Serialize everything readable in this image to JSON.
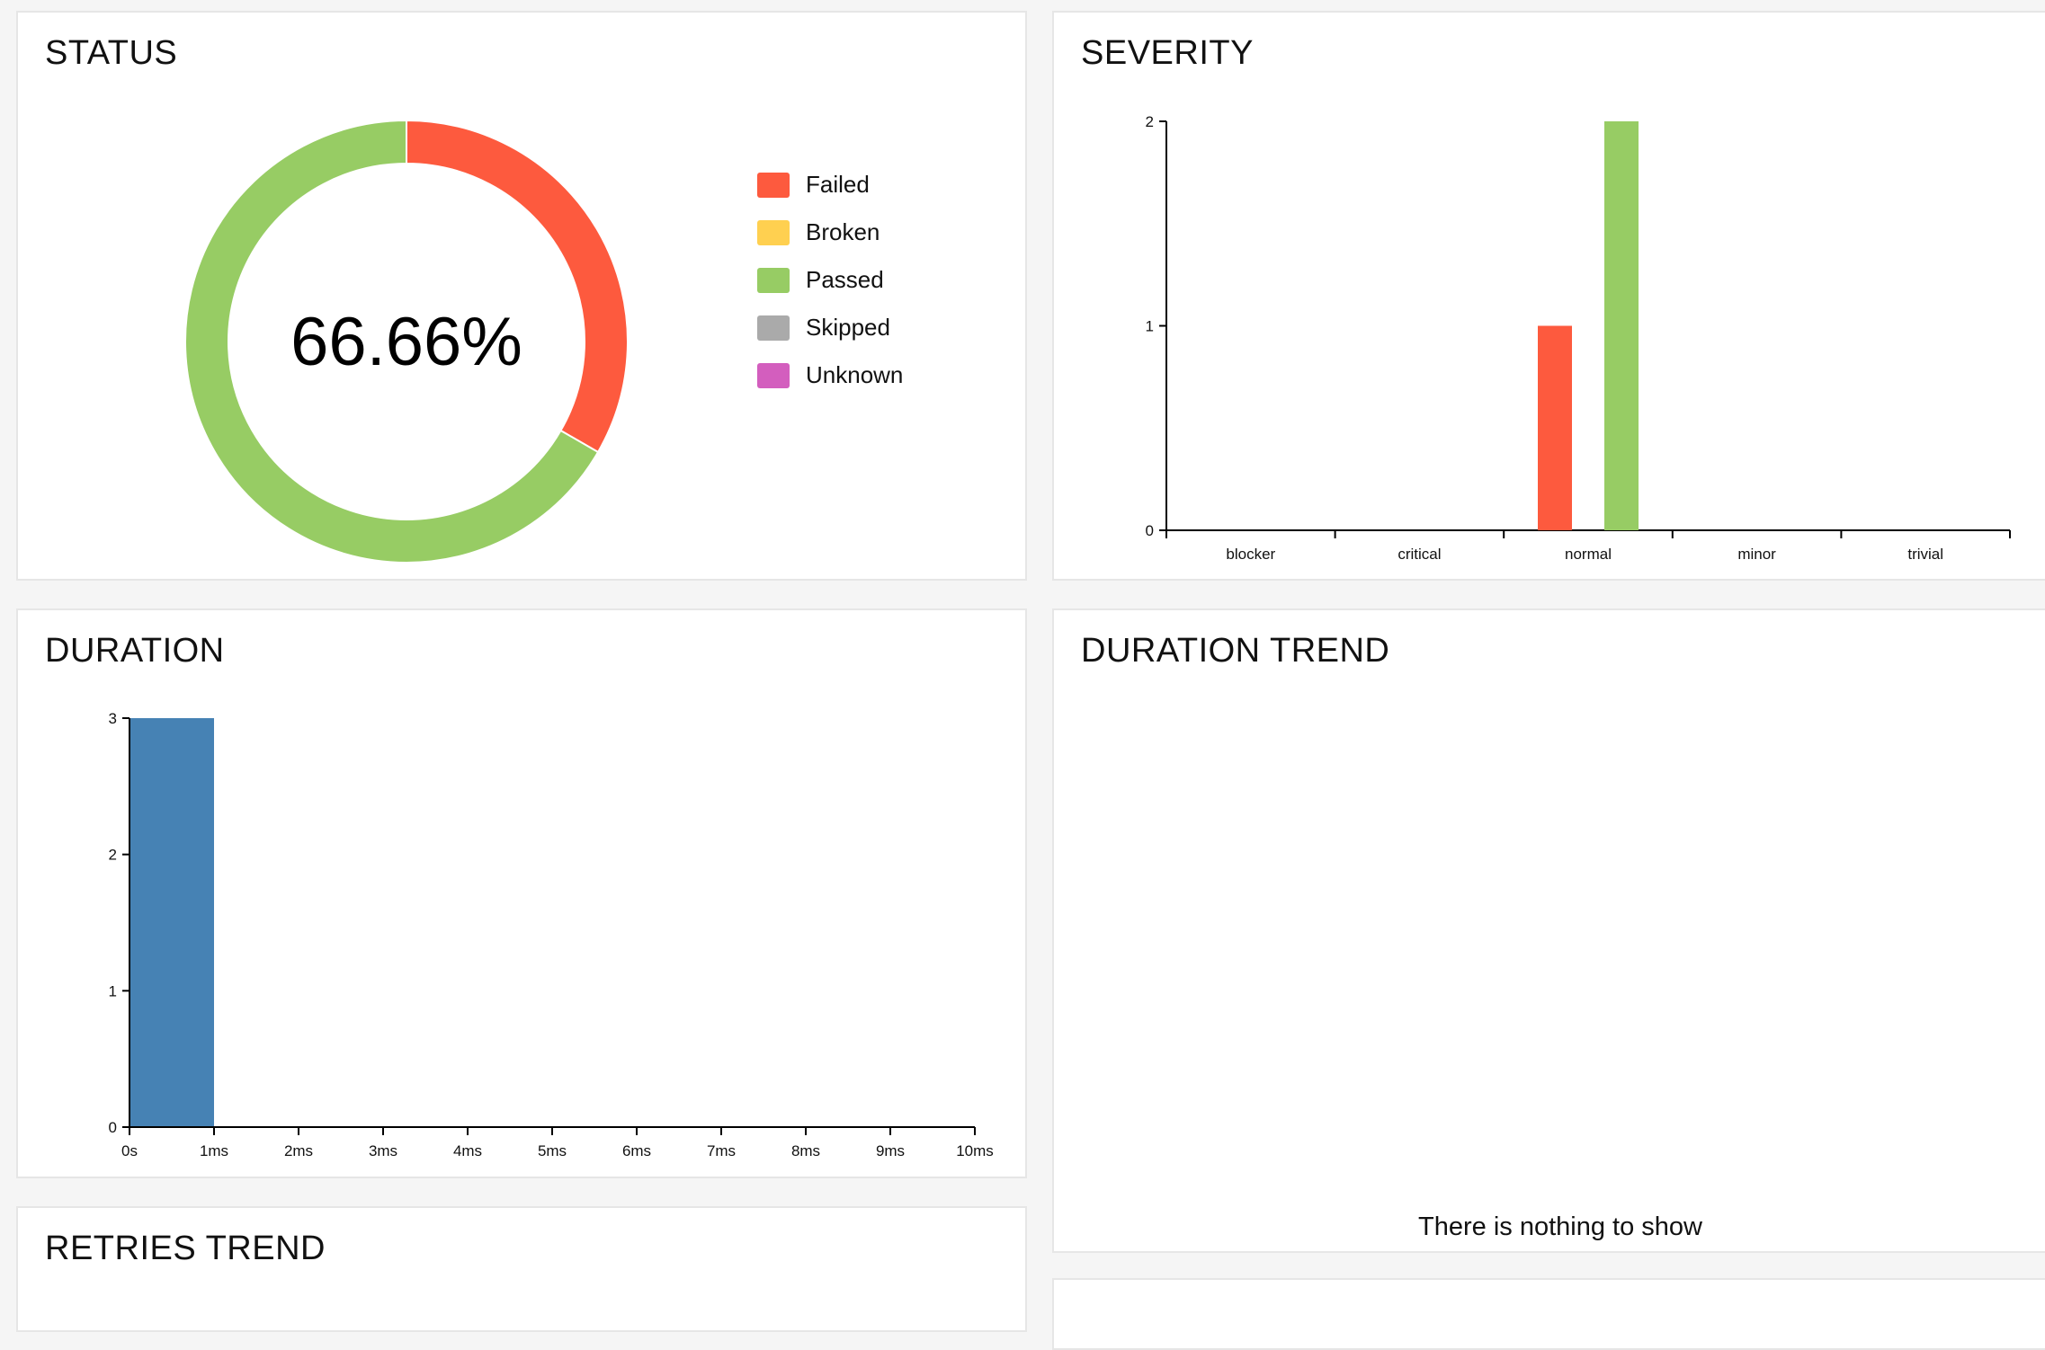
{
  "widgets": {
    "status": {
      "title": "STATUS"
    },
    "severity": {
      "title": "SEVERITY"
    },
    "duration": {
      "title": "DURATION"
    },
    "duration_trend": {
      "title": "DURATION TREND",
      "empty_text": "There is nothing to show"
    },
    "retries_trend": {
      "title": "RETRIES TREND"
    }
  },
  "chart_data": [
    {
      "type": "pie",
      "name": "status",
      "center_label": "66.66%",
      "labels": [
        "Failed",
        "Broken",
        "Passed",
        "Skipped",
        "Unknown"
      ],
      "values": [
        1,
        0,
        2,
        0,
        0
      ],
      "colors": [
        "#fd5a3e",
        "#ffd050",
        "#97cc64",
        "#aaaaaa",
        "#d35ebe"
      ],
      "legend_position": "right"
    },
    {
      "type": "bar",
      "name": "severity",
      "categories": [
        "blocker",
        "critical",
        "normal",
        "minor",
        "trivial"
      ],
      "series": [
        {
          "values": [
            0,
            0,
            1,
            0,
            0
          ],
          "color": "#fd5a3e"
        },
        {
          "values": [
            0,
            0,
            2,
            0,
            0
          ],
          "color": "#97cc64"
        }
      ],
      "yticks": [
        0,
        1,
        2
      ],
      "ylim": [
        0,
        2
      ],
      "grid": false
    },
    {
      "type": "bar",
      "name": "duration",
      "x_tick_labels": [
        "0s",
        "1ms",
        "2ms",
        "3ms",
        "4ms",
        "5ms",
        "6ms",
        "7ms",
        "8ms",
        "9ms",
        "10ms"
      ],
      "bins": [
        {
          "start": 0,
          "end": 1,
          "value": 3
        }
      ],
      "bin_units": "ms",
      "xlim": [
        0,
        10
      ],
      "yticks": [
        0,
        1,
        2,
        3
      ],
      "ylim": [
        0,
        3
      ],
      "color": "#4682b4",
      "grid": false
    }
  ]
}
